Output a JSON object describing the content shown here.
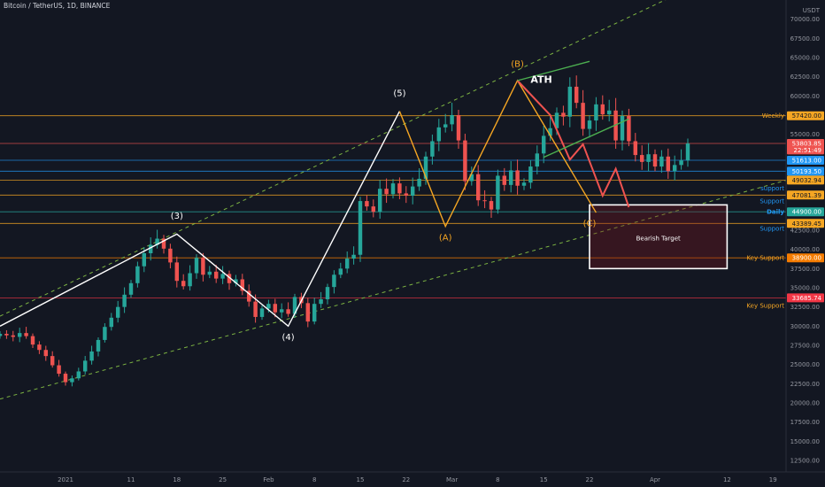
{
  "header": {
    "title": "Bitcoin / TetherUS, 1D, BINANCE"
  },
  "y_axis": {
    "unit": "USDT",
    "ticks": [
      "70000.00",
      "67500.00",
      "65000.00",
      "62500.00",
      "60000.00",
      "55000.00",
      "42500.00",
      "40000.00",
      "37500.00",
      "35000.00",
      "32500.00",
      "30000.00",
      "27500.00",
      "25000.00",
      "22500.00",
      "20000.00",
      "17500.00",
      "15000.00",
      "12500.00"
    ]
  },
  "x_axis": {
    "ticks": [
      "2021",
      "11",
      "18",
      "25",
      "Feb",
      "8",
      "15",
      "22",
      "Mar",
      "8",
      "15",
      "22",
      "Apr",
      "12",
      "19"
    ]
  },
  "price_labels": [
    {
      "text": "57420.00",
      "price": 57420,
      "bg": "#f5a623",
      "fg": "#131722"
    },
    {
      "text": "53803.85",
      "price": 53803.85,
      "bg": "#ef5350",
      "fg": "#ffffff"
    },
    {
      "text": "22:51:49",
      "price": 52950,
      "bg": "#ef5350",
      "fg": "#ffffff"
    },
    {
      "text": "51613.00",
      "price": 51613,
      "bg": "#2196f3",
      "fg": "#ffffff"
    },
    {
      "text": "50193.50",
      "price": 50193.5,
      "bg": "#2196f3",
      "fg": "#ffffff"
    },
    {
      "text": "49032.94",
      "price": 49032.94,
      "bg": "#f5a623",
      "fg": "#131722"
    },
    {
      "text": "47081.39",
      "price": 47081.39,
      "bg": "#f5a623",
      "fg": "#131722"
    },
    {
      "text": "44900.00",
      "price": 44900,
      "bg": "#26a69a",
      "fg": "#ffffff"
    },
    {
      "text": "43389.45",
      "price": 43389.45,
      "bg": "#f5a623",
      "fg": "#131722"
    },
    {
      "text": "38900.00",
      "price": 38900,
      "bg": "#f57c00",
      "fg": "#ffffff"
    },
    {
      "text": "33685.74",
      "price": 33685.74,
      "bg": "#f23645",
      "fg": "#ffffff"
    }
  ],
  "level_labels": [
    {
      "text": "Weekly",
      "price": 57420,
      "color": "#f5a623"
    },
    {
      "text": "support",
      "price": 48000,
      "color": "#2196f3"
    },
    {
      "text": "Support",
      "price": 46300,
      "color": "#2196f3"
    },
    {
      "text": "Daily",
      "price": 44900,
      "color": "#2196f3",
      "bold": true
    },
    {
      "text": "Support",
      "price": 42750,
      "color": "#2196f3"
    },
    {
      "text": "Key Support",
      "price": 38900,
      "color": "#f5a623"
    },
    {
      "text": "Key Support",
      "price": 32700,
      "color": "#f5a623"
    }
  ],
  "wave_labels": {
    "w3": "(3)",
    "w4": "(4)",
    "w5": "(5)",
    "wa": "(A)",
    "wb": "(B)",
    "wc": "(C)",
    "ath": "ATH"
  },
  "annotation": {
    "target_text": "Bearish Target"
  },
  "colors": {
    "background": "#131722",
    "up": "#26a69a",
    "down": "#ef5350",
    "orange": "#f5a623",
    "green_projection": "#4caf50",
    "channel": "#7cb342"
  },
  "chart_data": {
    "type": "candlestick",
    "title": "Bitcoin / TetherUS, 1D, BINANCE",
    "ylabel": "USDT",
    "ylim": [
      11000,
      72500
    ],
    "x_range_days": [
      -10,
      110
    ],
    "y_scale": "linear",
    "levels": [
      57420,
      53803.85,
      51613,
      50193.5,
      49032.94,
      47081.39,
      44900,
      43389.45,
      38900,
      33685.74
    ],
    "closes": [
      {
        "x": -10,
        "c": 29000
      },
      {
        "x": -9,
        "c": 28800
      },
      {
        "x": -8,
        "c": 28600
      },
      {
        "x": -7,
        "c": 29100
      },
      {
        "x": -6,
        "c": 28700
      },
      {
        "x": -5,
        "c": 27600
      },
      {
        "x": -4,
        "c": 26900
      },
      {
        "x": -3,
        "c": 26100
      },
      {
        "x": -2,
        "c": 24900
      },
      {
        "x": -1,
        "c": 23800
      },
      {
        "x": 0,
        "c": 22700
      },
      {
        "x": 1,
        "c": 23200
      },
      {
        "x": 2,
        "c": 24100
      },
      {
        "x": 3,
        "c": 25500
      },
      {
        "x": 4,
        "c": 26700
      },
      {
        "x": 5,
        "c": 28200
      },
      {
        "x": 6,
        "c": 29900
      },
      {
        "x": 7,
        "c": 31100
      },
      {
        "x": 8,
        "c": 32500
      },
      {
        "x": 9,
        "c": 34100
      },
      {
        "x": 10,
        "c": 35600
      },
      {
        "x": 11,
        "c": 37800
      },
      {
        "x": 12,
        "c": 39500
      },
      {
        "x": 13,
        "c": 40600
      },
      {
        "x": 14,
        "c": 41400
      },
      {
        "x": 15,
        "c": 40100
      },
      {
        "x": 16,
        "c": 38300
      },
      {
        "x": 17,
        "c": 35900
      },
      {
        "x": 18,
        "c": 35200
      },
      {
        "x": 19,
        "c": 36900
      },
      {
        "x": 20,
        "c": 38900
      },
      {
        "x": 21,
        "c": 36700
      },
      {
        "x": 22,
        "c": 37100
      },
      {
        "x": 23,
        "c": 36200
      },
      {
        "x": 24,
        "c": 36800
      },
      {
        "x": 25,
        "c": 35600
      },
      {
        "x": 26,
        "c": 36100
      },
      {
        "x": 27,
        "c": 34600
      },
      {
        "x": 28,
        "c": 33200
      },
      {
        "x": 29,
        "c": 31200
      },
      {
        "x": 30,
        "c": 32300
      },
      {
        "x": 31,
        "c": 32900
      },
      {
        "x": 32,
        "c": 31800
      },
      {
        "x": 33,
        "c": 32200
      },
      {
        "x": 34,
        "c": 31600
      },
      {
        "x": 35,
        "c": 33800
      },
      {
        "x": 36,
        "c": 33000
      },
      {
        "x": 37,
        "c": 30600
      },
      {
        "x": 38,
        "c": 32900
      },
      {
        "x": 39,
        "c": 33500
      },
      {
        "x": 40,
        "c": 35100
      },
      {
        "x": 41,
        "c": 36700
      },
      {
        "x": 42,
        "c": 37500
      },
      {
        "x": 43,
        "c": 38800
      },
      {
        "x": 44,
        "c": 39300
      },
      {
        "x": 45,
        "c": 46300
      },
      {
        "x": 46,
        "c": 45600
      },
      {
        "x": 47,
        "c": 44900
      },
      {
        "x": 48,
        "c": 47900
      },
      {
        "x": 49,
        "c": 47200
      },
      {
        "x": 50,
        "c": 48600
      },
      {
        "x": 51,
        "c": 47300
      },
      {
        "x": 52,
        "c": 47000
      },
      {
        "x": 53,
        "c": 48200
      },
      {
        "x": 54,
        "c": 49200
      },
      {
        "x": 55,
        "c": 52100
      },
      {
        "x": 56,
        "c": 54100
      },
      {
        "x": 57,
        "c": 55900
      },
      {
        "x": 58,
        "c": 56300
      },
      {
        "x": 59,
        "c": 57500
      },
      {
        "x": 60,
        "c": 54200
      },
      {
        "x": 61,
        "c": 48900
      },
      {
        "x": 62,
        "c": 49800
      },
      {
        "x": 63,
        "c": 46400
      },
      {
        "x": 64,
        "c": 46300
      },
      {
        "x": 65,
        "c": 45200
      },
      {
        "x": 66,
        "c": 49600
      },
      {
        "x": 67,
        "c": 48400
      },
      {
        "x": 68,
        "c": 50300
      },
      {
        "x": 69,
        "c": 48300
      },
      {
        "x": 70,
        "c": 48700
      },
      {
        "x": 71,
        "c": 50800
      },
      {
        "x": 72,
        "c": 52500
      },
      {
        "x": 73,
        "c": 54800
      },
      {
        "x": 74,
        "c": 55800
      },
      {
        "x": 75,
        "c": 57800
      },
      {
        "x": 76,
        "c": 57300
      },
      {
        "x": 77,
        "c": 61200
      },
      {
        "x": 78,
        "c": 59100
      },
      {
        "x": 79,
        "c": 55700
      },
      {
        "x": 80,
        "c": 56800
      },
      {
        "x": 81,
        "c": 58900
      },
      {
        "x": 82,
        "c": 57600
      },
      {
        "x": 83,
        "c": 58100
      },
      {
        "x": 84,
        "c": 54200
      },
      {
        "x": 85,
        "c": 57400
      },
      {
        "x": 86,
        "c": 54100
      },
      {
        "x": 87,
        "c": 52300
      },
      {
        "x": 88,
        "c": 51400
      },
      {
        "x": 89,
        "c": 52400
      },
      {
        "x": 90,
        "c": 50800
      },
      {
        "x": 91,
        "c": 52100
      },
      {
        "x": 92,
        "c": 50200
      },
      {
        "x": 93,
        "c": 51000
      },
      {
        "x": 94,
        "c": 51600
      },
      {
        "x": 95,
        "c": 53800
      }
    ],
    "wave_points": {
      "white": [
        [
          -10,
          30000
        ],
        [
          17,
          42000
        ],
        [
          34,
          30000
        ],
        [
          51,
          58000
        ]
      ],
      "orange": [
        [
          51,
          58000
        ],
        [
          58,
          43000
        ],
        [
          69,
          62000
        ],
        [
          81,
          44800
        ]
      ],
      "red_projection": [
        [
          69,
          62000
        ],
        [
          74,
          57500
        ],
        [
          77,
          51700
        ],
        [
          79,
          53700
        ],
        [
          82,
          47000
        ],
        [
          84,
          50500
        ],
        [
          86,
          45500
        ]
      ]
    },
    "target_box": {
      "x0": 80,
      "x1": 101,
      "y0": 37500,
      "y1": 45800
    }
  }
}
